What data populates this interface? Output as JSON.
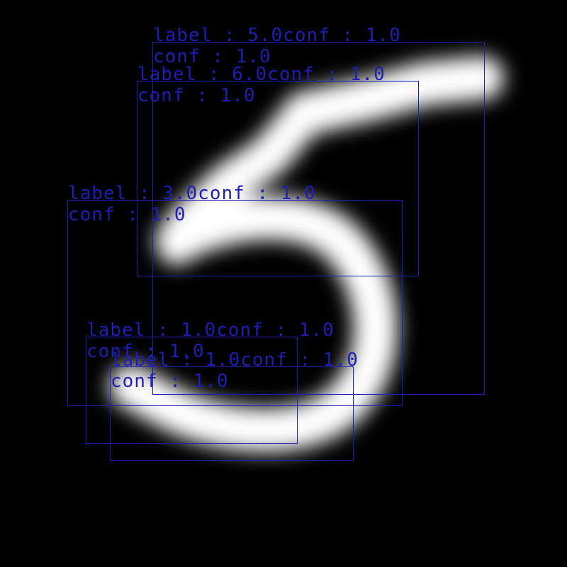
{
  "colors": {
    "background": "#000000",
    "digit_stroke": "#ffffff",
    "box_stroke": "#1e1eb4"
  },
  "image": {
    "content": "digit-5",
    "icon": "handwritten-digit-icon"
  },
  "detections": [
    {
      "label_text": "label : 5.0conf : 1.0",
      "conf_text": "conf : 1.0",
      "label": 5.0,
      "conf": 1.0
    },
    {
      "label_text": "label : 6.0conf : 1.0",
      "conf_text": "conf : 1.0",
      "label": 6.0,
      "conf": 1.0
    },
    {
      "label_text": "label : 3.0conf : 1.0",
      "conf_text": "conf : 1.0",
      "label": 3.0,
      "conf": 1.0
    },
    {
      "label_text": "label : 1.0conf : 1.0",
      "conf_text": "conf : 1.0",
      "label": 1.0,
      "conf": 1.0
    },
    {
      "label_text": "label : 1.0conf : 1.0",
      "conf_text": "conf : 1.0",
      "label": 1.0,
      "conf": 1.0
    }
  ]
}
